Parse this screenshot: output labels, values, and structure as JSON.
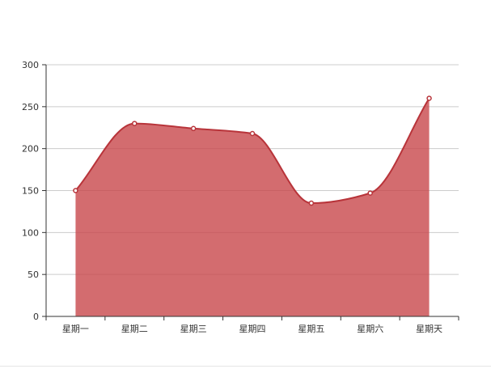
{
  "chart_data": {
    "type": "area",
    "categories": [
      "星期一",
      "星期二",
      "星期三",
      "星期四",
      "星期五",
      "星期六",
      "星期天"
    ],
    "series": [
      {
        "values": [
          150,
          230,
          224,
          218,
          135,
          147,
          260
        ]
      }
    ],
    "ylim": [
      0,
      300
    ],
    "yticks": [
      0,
      50,
      100,
      150,
      200,
      250,
      300
    ],
    "smooth": true,
    "grid": true,
    "colors": {
      "line": "#b8343a",
      "area": "#c74247",
      "grid": "#cccccc",
      "axis": "#333333",
      "tick_text": "#333333",
      "marker_fill": "#ffffff"
    }
  }
}
